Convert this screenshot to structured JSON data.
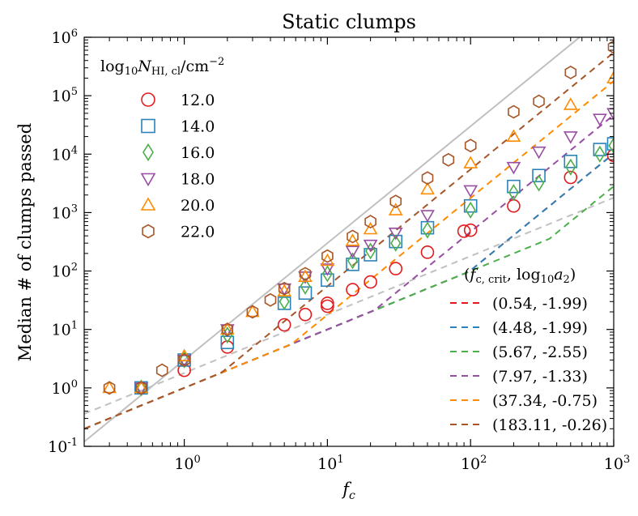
{
  "chart_data": {
    "type": "scatter",
    "title": "Static clumps",
    "xlabel": "f_c",
    "ylabel": "Median # of clumps passed",
    "xscale": "log",
    "yscale": "log",
    "xlim": [
      0.2,
      1000
    ],
    "ylim": [
      0.1,
      1000000
    ],
    "grid": false,
    "x_ticks": [
      {
        "value": 1,
        "base": "10",
        "exp": "0"
      },
      {
        "value": 10,
        "base": "10",
        "exp": "1"
      },
      {
        "value": 100,
        "base": "10",
        "exp": "2"
      },
      {
        "value": 1000,
        "base": "10",
        "exp": "3"
      }
    ],
    "y_ticks": [
      {
        "value": 0.1,
        "base": "10",
        "exp": "-1"
      },
      {
        "value": 1,
        "base": "10",
        "exp": "0"
      },
      {
        "value": 10,
        "base": "10",
        "exp": "1"
      },
      {
        "value": 100,
        "base": "10",
        "exp": "2"
      },
      {
        "value": 1000,
        "base": "10",
        "exp": "3"
      },
      {
        "value": 10000,
        "base": "10",
        "exp": "4"
      },
      {
        "value": 100000,
        "base": "10",
        "exp": "5"
      },
      {
        "value": 1000000,
        "base": "10",
        "exp": "6"
      }
    ],
    "legend_markers": {
      "title": "log10 N_HI,cl / cm^-2",
      "placement": "top-left",
      "entries": [
        "12.0",
        "14.0",
        "16.0",
        "18.0",
        "20.0",
        "22.0"
      ]
    },
    "legend_fits": {
      "title": "(f_c,crit, log10 a2)",
      "placement": "lower-right",
      "entries": [
        "(0.54, -1.99)",
        "(4.48, -1.99)",
        "(5.67, -2.55)",
        "(7.97, -1.33)",
        "(37.34, -0.75)",
        "(183.11, -0.26)"
      ]
    },
    "reference_lines": [
      {
        "style": "solid",
        "color": "#c0c0c0",
        "slope": 2,
        "intercept_at_1": 3.0
      },
      {
        "style": "dashed",
        "color": "#c0c0c0",
        "slope": 1,
        "intercept_at_1": 1.8
      }
    ],
    "series": [
      {
        "name": "12.0",
        "marker": "circle",
        "color": "#e31a1c",
        "fc_crit": 0.54,
        "log10_a2": -1.99,
        "x": [
          0.5,
          1,
          2,
          5,
          7,
          10,
          10,
          15,
          20,
          30,
          50,
          90,
          100,
          200,
          500,
          1000
        ],
        "y": [
          1,
          2,
          5,
          12,
          18,
          25,
          28,
          48,
          65,
          110,
          210,
          480,
          500,
          1300,
          4000,
          9500
        ]
      },
      {
        "name": "14.0",
        "marker": "square",
        "color": "#2b83ba",
        "fc_crit": 4.48,
        "log10_a2": -1.99,
        "x": [
          0.5,
          1,
          2,
          5,
          7,
          10,
          15,
          20,
          30,
          50,
          100,
          200,
          300,
          500,
          800,
          1000
        ],
        "y": [
          1,
          3,
          6,
          28,
          42,
          70,
          130,
          190,
          320,
          550,
          1300,
          2800,
          4300,
          7500,
          12000,
          15000
        ]
      },
      {
        "name": "16.0",
        "marker": "diamond",
        "color": "#4daf4a",
        "fc_crit": 5.67,
        "log10_a2": -2.55,
        "x": [
          0.5,
          1,
          2,
          5,
          7,
          10,
          15,
          20,
          30,
          50,
          100,
          200,
          300,
          500,
          800,
          1000
        ],
        "y": [
          1,
          3,
          8,
          30,
          55,
          90,
          150,
          220,
          300,
          500,
          1100,
          2200,
          3200,
          6000,
          10000,
          14000
        ]
      },
      {
        "name": "18.0",
        "marker": "triangle-down",
        "color": "#984ea3",
        "fc_crit": 7.97,
        "log10_a2": -1.33,
        "x": [
          0.5,
          1,
          2,
          5,
          7,
          10,
          15,
          20,
          30,
          50,
          100,
          200,
          300,
          500,
          800,
          1000
        ],
        "y": [
          1,
          3,
          10,
          50,
          80,
          110,
          220,
          280,
          450,
          900,
          2400,
          6000,
          11000,
          20000,
          40000,
          50000
        ]
      },
      {
        "name": "20.0",
        "marker": "triangle-up",
        "color": "#ff8c00",
        "fc_crit": 37.34,
        "log10_a2": -0.75,
        "x": [
          0.3,
          0.5,
          1,
          2,
          3,
          5,
          7,
          10,
          15,
          20,
          30,
          50,
          100,
          200,
          500,
          1000
        ],
        "y": [
          1,
          1,
          3.5,
          10,
          20,
          45,
          80,
          150,
          330,
          520,
          1100,
          2500,
          7000,
          20000,
          70000,
          200000
        ]
      },
      {
        "name": "22.0",
        "marker": "hexagon",
        "color": "#a65628",
        "fc_crit": 183.11,
        "log10_a2": -0.26,
        "x": [
          0.3,
          0.5,
          0.7,
          1,
          2,
          3,
          4,
          5,
          7,
          10,
          15,
          20,
          30,
          50,
          70,
          100,
          200,
          300,
          500,
          1000
        ],
        "y": [
          1,
          1,
          2,
          3,
          10,
          20,
          32,
          50,
          90,
          180,
          390,
          700,
          1550,
          3900,
          8000,
          14000,
          53000,
          80000,
          250000,
          680000
        ]
      }
    ]
  }
}
